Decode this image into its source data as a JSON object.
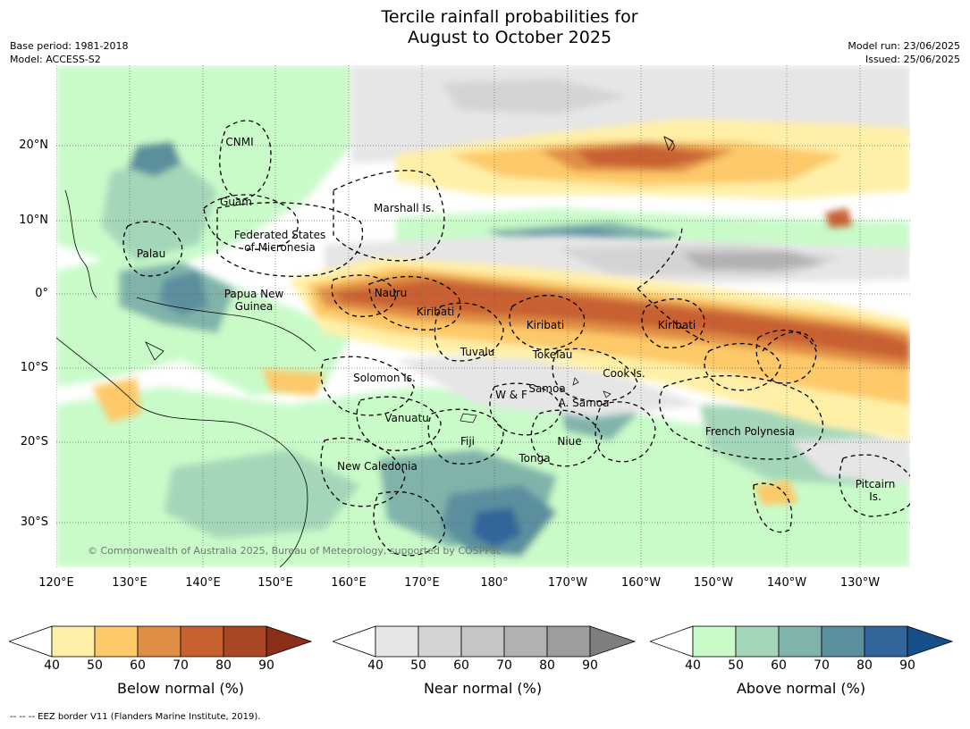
{
  "header": {
    "title_line1": "Tercile rainfall probabilities for",
    "title_line2": "August to October 2025",
    "base_period": "Base period: 1981-2018",
    "model": "Model: ACCESS-S2",
    "model_run": "Model run: 23/06/2025",
    "issued": "Issued: 25/06/2025"
  },
  "map": {
    "lat_labels": [
      "20°N",
      "10°N",
      "0°",
      "10°S",
      "20°S",
      "30°S"
    ],
    "lon_labels": [
      "120°E",
      "130°E",
      "140°E",
      "150°E",
      "160°E",
      "170°E",
      "180°",
      "170°W",
      "160°W",
      "150°W",
      "140°W",
      "130°W"
    ],
    "regions": {
      "cnmi": "CNMI",
      "guam": "Guam",
      "marshall": "Marshall Is.",
      "fsm_line1": "Federated States",
      "fsm_line2": "of Micronesia",
      "palau": "Palau",
      "png_line1": "Papua New",
      "png_line2": "Guinea",
      "nauru": "Nauru",
      "kiribati_west": "Kiribati",
      "kiribati_central": "Kiribati",
      "kiribati_east": "Kiribati",
      "tuvalu": "Tuvalu",
      "tokelau": "Tokelau",
      "cook": "Cook Is.",
      "solomon": "Solomon Is.",
      "wf": "W & F",
      "samoa": "Samoa",
      "asamoa": "A. Samoa",
      "vanuatu": "Vanuatu",
      "fiji": "Fiji",
      "niue": "Niue",
      "tonga": "Tonga",
      "newcal": "New Caledonia",
      "frenchpoly": "French Polynesia",
      "pitcairn_line1": "Pitcairn",
      "pitcairn_line2": "Is."
    },
    "copyright": "© Commonwealth of Australia 2025, Bureau of Meteorology, supported by COSPPac"
  },
  "colorbars": {
    "ticks": [
      "40",
      "50",
      "60",
      "70",
      "80",
      "90"
    ],
    "below": {
      "title": "Below normal (%)",
      "colors": [
        "#ffffff",
        "#fff0a8",
        "#fdc969",
        "#e08e45",
        "#c86130",
        "#aa4825",
        "#8b2f18"
      ]
    },
    "near": {
      "title": "Near normal (%)",
      "colors": [
        "#ffffff",
        "#e6e6e6",
        "#d4d4d4",
        "#c5c5c5",
        "#b2b2b2",
        "#9d9d9d",
        "#7e7e7e"
      ]
    },
    "above": {
      "title": "Above normal (%)",
      "colors": [
        "#ffffff",
        "#c9fbc9",
        "#a4d7b9",
        "#80b4ab",
        "#5b8f9e",
        "#32659a",
        "#16508b"
      ]
    }
  },
  "footer": {
    "eez_note": "--  --  -- EEZ border V11 (Flanders Marine Institute, 2019)."
  }
}
